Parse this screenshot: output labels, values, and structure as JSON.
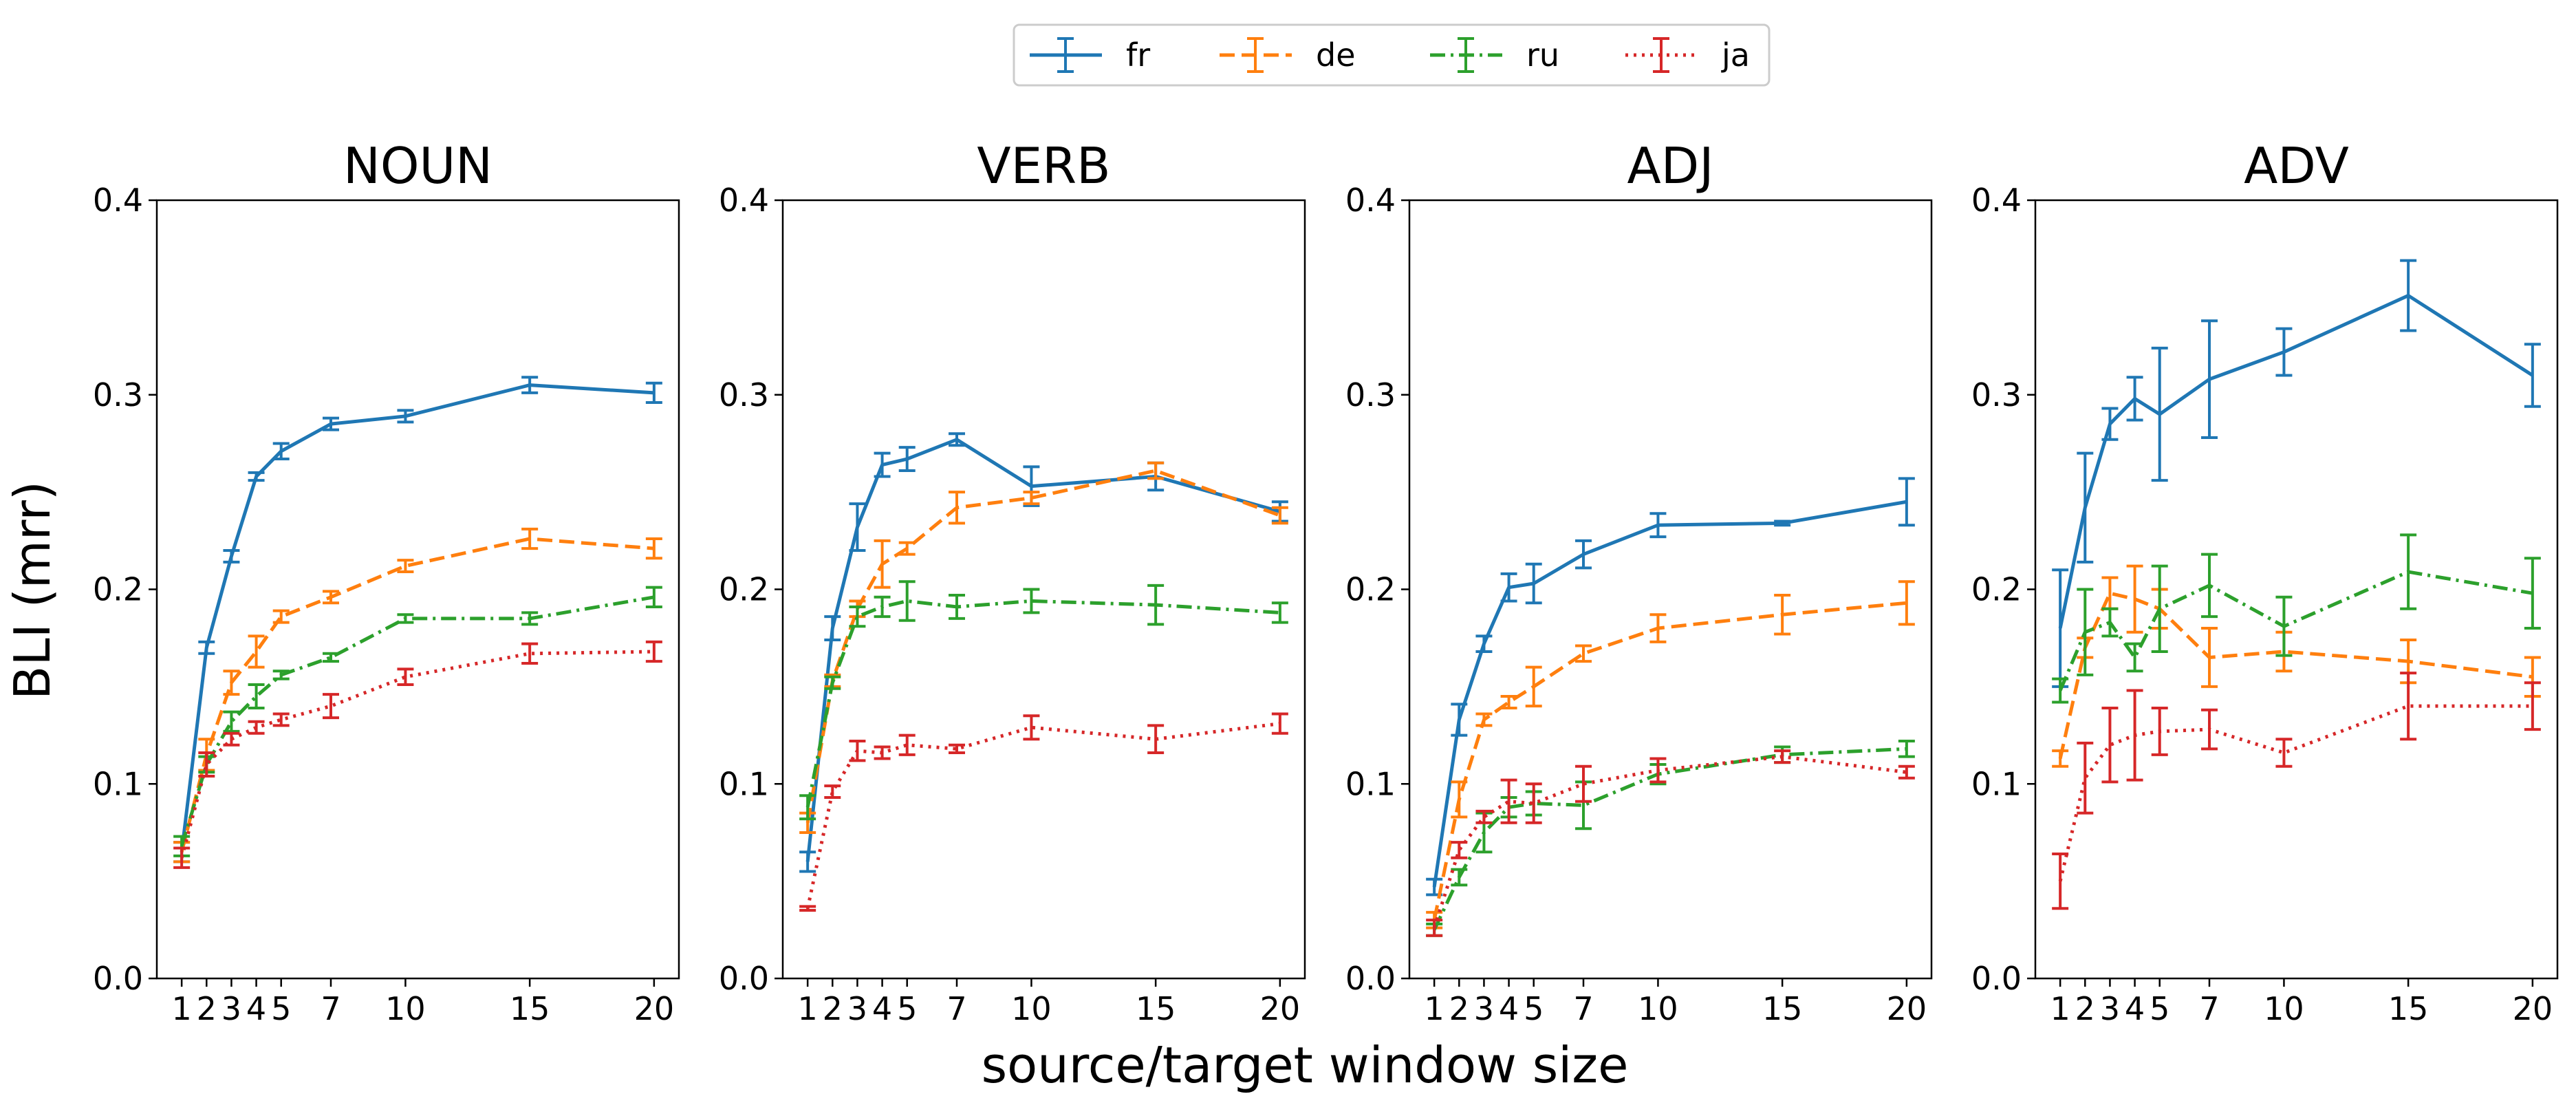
{
  "chart_data": {
    "type": "line",
    "layout": "1x4 subplots",
    "xlabel": "source/target window size",
    "ylabel": "BLI (mrr)",
    "ylim": [
      0.0,
      0.4
    ],
    "yticks": [
      "0.0",
      "0.1",
      "0.2",
      "0.3",
      "0.4"
    ],
    "x": [
      1,
      2,
      3,
      4,
      5,
      7,
      10,
      15,
      20
    ],
    "xticks": [
      "1",
      "2",
      "3",
      "4",
      "5",
      "7",
      "10",
      "15",
      "20"
    ],
    "legend": {
      "placement": "top-center",
      "entries": [
        {
          "name": "fr",
          "color": "#1f77b4",
          "style": "solid"
        },
        {
          "name": "de",
          "color": "#ff7f0e",
          "style": "dashed"
        },
        {
          "name": "ru",
          "color": "#2ca02c",
          "style": "dashdot"
        },
        {
          "name": "ja",
          "color": "#d62728",
          "style": "dotted"
        }
      ]
    },
    "panels": [
      {
        "title": "NOUN",
        "series": [
          {
            "name": "fr",
            "values": [
              0.065,
              0.17,
              0.217,
              0.258,
              0.271,
              0.285,
              0.289,
              0.305,
              0.301
            ],
            "errors": [
              0.005,
              0.003,
              0.003,
              0.002,
              0.004,
              0.003,
              0.003,
              0.004,
              0.005
            ]
          },
          {
            "name": "de",
            "values": [
              0.065,
              0.115,
              0.152,
              0.168,
              0.186,
              0.196,
              0.212,
              0.226,
              0.221
            ],
            "errors": [
              0.005,
              0.008,
              0.006,
              0.008,
              0.003,
              0.003,
              0.003,
              0.005,
              0.005
            ]
          },
          {
            "name": "ru",
            "values": [
              0.068,
              0.11,
              0.132,
              0.145,
              0.156,
              0.165,
              0.185,
              0.185,
              0.196
            ],
            "errors": [
              0.005,
              0.004,
              0.005,
              0.006,
              0.002,
              0.002,
              0.002,
              0.003,
              0.005
            ]
          },
          {
            "name": "ja",
            "values": [
              0.062,
              0.11,
              0.123,
              0.129,
              0.133,
              0.14,
              0.155,
              0.167,
              0.168
            ],
            "errors": [
              0.005,
              0.006,
              0.003,
              0.003,
              0.003,
              0.006,
              0.004,
              0.005,
              0.005
            ]
          }
        ]
      },
      {
        "title": "VERB",
        "series": [
          {
            "name": "fr",
            "values": [
              0.06,
              0.18,
              0.232,
              0.264,
              0.267,
              0.277,
              0.253,
              0.258,
              0.24
            ],
            "errors": [
              0.005,
              0.006,
              0.012,
              0.006,
              0.006,
              0.003,
              0.01,
              0.007,
              0.005
            ]
          },
          {
            "name": "de",
            "values": [
              0.08,
              0.153,
              0.19,
              0.213,
              0.221,
              0.242,
              0.247,
              0.261,
              0.238
            ],
            "errors": [
              0.005,
              0.003,
              0.004,
              0.012,
              0.003,
              0.008,
              0.003,
              0.004,
              0.004
            ]
          },
          {
            "name": "ru",
            "values": [
              0.088,
              0.152,
              0.186,
              0.191,
              0.194,
              0.191,
              0.194,
              0.192,
              0.188
            ],
            "errors": [
              0.006,
              0.003,
              0.005,
              0.005,
              0.01,
              0.006,
              0.006,
              0.01,
              0.005
            ]
          },
          {
            "name": "ja",
            "values": [
              0.036,
              0.096,
              0.117,
              0.116,
              0.12,
              0.118,
              0.129,
              0.123,
              0.131
            ],
            "errors": [
              0.001,
              0.003,
              0.005,
              0.003,
              0.005,
              0.002,
              0.006,
              0.007,
              0.005
            ]
          }
        ]
      },
      {
        "title": "ADJ",
        "series": [
          {
            "name": "fr",
            "values": [
              0.047,
              0.133,
              0.172,
              0.201,
              0.203,
              0.218,
              0.233,
              0.234,
              0.245
            ],
            "errors": [
              0.004,
              0.008,
              0.004,
              0.007,
              0.01,
              0.007,
              0.006,
              0.001,
              0.012
            ]
          },
          {
            "name": "de",
            "values": [
              0.03,
              0.092,
              0.133,
              0.142,
              0.15,
              0.167,
              0.18,
              0.187,
              0.193
            ],
            "errors": [
              0.004,
              0.009,
              0.003,
              0.003,
              0.01,
              0.004,
              0.007,
              0.01,
              0.011
            ]
          },
          {
            "name": "ru",
            "values": [
              0.025,
              0.052,
              0.075,
              0.088,
              0.09,
              0.089,
              0.105,
              0.115,
              0.118
            ],
            "errors": [
              0.003,
              0.004,
              0.01,
              0.005,
              0.006,
              0.012,
              0.005,
              0.004,
              0.004
            ]
          },
          {
            "name": "ja",
            "values": [
              0.026,
              0.066,
              0.083,
              0.091,
              0.09,
              0.1,
              0.107,
              0.114,
              0.106
            ],
            "errors": [
              0.004,
              0.004,
              0.003,
              0.011,
              0.01,
              0.009,
              0.006,
              0.003,
              0.003
            ]
          }
        ]
      },
      {
        "title": "ADV",
        "series": [
          {
            "name": "fr",
            "values": [
              0.18,
              0.242,
              0.285,
              0.298,
              0.29,
              0.308,
              0.322,
              0.351,
              0.31
            ],
            "errors": [
              0.03,
              0.028,
              0.008,
              0.011,
              0.034,
              0.03,
              0.012,
              0.018,
              0.016
            ]
          },
          {
            "name": "de",
            "values": [
              0.113,
              0.17,
              0.198,
              0.195,
              0.19,
              0.165,
              0.168,
              0.163,
              0.155
            ],
            "errors": [
              0.004,
              0.005,
              0.008,
              0.017,
              0.01,
              0.015,
              0.01,
              0.011,
              0.01
            ]
          },
          {
            "name": "ru",
            "values": [
              0.148,
              0.178,
              0.183,
              0.165,
              0.19,
              0.202,
              0.181,
              0.209,
              0.198
            ],
            "errors": [
              0.006,
              0.022,
              0.007,
              0.007,
              0.022,
              0.016,
              0.015,
              0.019,
              0.018
            ]
          },
          {
            "name": "ja",
            "values": [
              0.05,
              0.103,
              0.12,
              0.125,
              0.127,
              0.128,
              0.116,
              0.14,
              0.14
            ],
            "errors": [
              0.014,
              0.018,
              0.019,
              0.023,
              0.012,
              0.01,
              0.007,
              0.017,
              0.012
            ]
          }
        ]
      }
    ]
  }
}
